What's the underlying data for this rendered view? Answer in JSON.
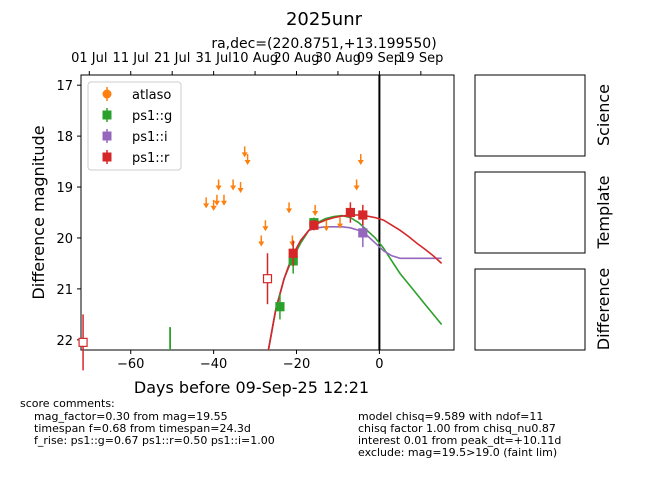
{
  "title": "2025unr",
  "subtitle": "ra,dec=(220.8751,+13.199550)",
  "colors": {
    "atlaso": "#ff7f0e",
    "g": "#2ca02c",
    "i": "#9467bd",
    "r": "#d62728",
    "axis": "#000000"
  },
  "chart_data": {
    "type": "scatter",
    "title": "2025unr",
    "subtitle": "ra,dec=(220.8751,+13.199550)",
    "xlabel": "Days before 09-Sep-25 12:21",
    "ylabel": "Difference magnitude",
    "xlim": [
      -72,
      18
    ],
    "ylim": [
      22.2,
      16.8
    ],
    "y_inverted": true,
    "x_ticks": [
      -60,
      -40,
      -20,
      0
    ],
    "y_ticks": [
      17,
      18,
      19,
      20,
      21,
      22
    ],
    "top_axis_ticks": [
      {
        "x": -70,
        "label": "01 Jul"
      },
      {
        "x": -60,
        "label": "11 Jul"
      },
      {
        "x": -50,
        "label": "21 Jul"
      },
      {
        "x": -40,
        "label": "31 Jul"
      },
      {
        "x": -30,
        "label": "10 Aug"
      },
      {
        "x": -20,
        "label": "20 Aug"
      },
      {
        "x": -10,
        "label": "30 Aug"
      },
      {
        "x": 0,
        "label": "09 Sep"
      },
      {
        "x": 10,
        "label": "19 Sep"
      }
    ],
    "vline_x": 0,
    "legend": {
      "position": "top-left",
      "entries": [
        "atlaso",
        "ps1::g",
        "ps1::i",
        "ps1::r"
      ]
    },
    "series": [
      {
        "name": "atlaso",
        "marker": "circle",
        "color": "#ff7f0e",
        "upper_limits": [
          [
            -41.8,
            19.3
          ],
          [
            -40.0,
            19.35
          ],
          [
            -39.2,
            19.25
          ],
          [
            -38.8,
            18.95
          ],
          [
            -37.5,
            19.25
          ],
          [
            -35.3,
            18.95
          ],
          [
            -33.5,
            19.0
          ],
          [
            -32.5,
            18.3
          ],
          [
            -31.8,
            18.45
          ],
          [
            -28.5,
            20.05
          ],
          [
            -27.5,
            19.75
          ],
          [
            -21.8,
            19.4
          ],
          [
            -21.0,
            20.05
          ],
          [
            -15.5,
            19.45
          ],
          [
            -12.8,
            19.75
          ],
          [
            -9.5,
            19.7
          ],
          [
            -5.5,
            18.95
          ],
          [
            -4.5,
            18.45
          ]
        ],
        "points": []
      },
      {
        "name": "ps1::g",
        "marker": "square",
        "color": "#2ca02c",
        "points": [
          [
            -24.0,
            21.35,
            0.25
          ],
          [
            -20.8,
            20.45,
            0.25
          ],
          [
            -15.8,
            19.7,
            0.1
          ]
        ],
        "lone_errorbar": [
          -50.5,
          22.15,
          0.4
        ]
      },
      {
        "name": "ps1::i",
        "marker": "square",
        "color": "#9467bd",
        "points": [
          [
            -4.0,
            19.9,
            0.28
          ]
        ]
      },
      {
        "name": "ps1::r",
        "marker": "square",
        "color": "#d62728",
        "points": [
          [
            -20.8,
            20.3,
            0.25
          ],
          [
            -15.8,
            19.75,
            0.1
          ],
          [
            -7.0,
            19.5,
            0.2
          ],
          [
            -4.0,
            19.55,
            0.2
          ]
        ],
        "open_points": [
          [
            -71.5,
            22.05,
            0.55
          ],
          [
            -27.0,
            20.8,
            0.5
          ]
        ]
      }
    ],
    "model_curves": [
      {
        "name": "ps1::g",
        "color": "#2ca02c",
        "x": [
          -27,
          -25,
          -23,
          -21,
          -19,
          -17,
          -15,
          -13,
          -11,
          -9,
          -7,
          -5,
          -3,
          -1,
          1,
          3,
          5,
          7,
          9,
          11,
          13,
          15
        ],
        "y": [
          22.3,
          21.4,
          20.8,
          20.4,
          20.1,
          19.85,
          19.7,
          19.62,
          19.58,
          19.56,
          19.6,
          19.7,
          19.85,
          20.0,
          20.2,
          20.45,
          20.7,
          20.9,
          21.1,
          21.3,
          21.5,
          21.7
        ]
      },
      {
        "name": "ps1::i",
        "color": "#9467bd",
        "x": [
          -27,
          -25,
          -23,
          -21,
          -19,
          -17,
          -15,
          -13,
          -11,
          -9,
          -7,
          -5,
          -3,
          -1,
          1,
          3,
          5,
          7,
          9,
          11,
          13,
          15
        ],
        "y": [
          22.3,
          21.4,
          20.8,
          20.35,
          20.05,
          19.85,
          19.8,
          19.78,
          19.78,
          19.78,
          19.8,
          19.85,
          19.95,
          20.1,
          20.25,
          20.35,
          20.4,
          20.4,
          20.4,
          20.4,
          20.4,
          20.4
        ]
      },
      {
        "name": "ps1::r",
        "color": "#d62728",
        "x": [
          -27,
          -25,
          -23,
          -21,
          -19,
          -17,
          -15,
          -13,
          -11,
          -9,
          -7,
          -5,
          -3,
          -1,
          1,
          3,
          5,
          7,
          9,
          11,
          13,
          15
        ],
        "y": [
          22.3,
          21.4,
          20.8,
          20.35,
          20.05,
          19.85,
          19.72,
          19.65,
          19.6,
          19.57,
          19.55,
          19.55,
          19.57,
          19.6,
          19.65,
          19.75,
          19.85,
          19.97,
          20.1,
          20.22,
          20.35,
          20.5
        ]
      }
    ]
  },
  "panels": [
    "Science",
    "Template",
    "Difference"
  ],
  "comments_left": {
    "header": "score comments:",
    "lines": [
      "mag_factor=0.30 from mag=19.55",
      "timespan f=0.68 from timespan=24.3d",
      "f_rise: ps1::g=0.67 ps1::r=0.50 ps1::i=1.00"
    ]
  },
  "comments_right": {
    "lines": [
      "model chisq=9.589 with ndof=11",
      "chisq factor 1.00 from chisq_nu0.87",
      "interest 0.01 from peak_dt=+10.11d",
      "exclude: mag=19.5>19.0 (faint lim)"
    ]
  }
}
